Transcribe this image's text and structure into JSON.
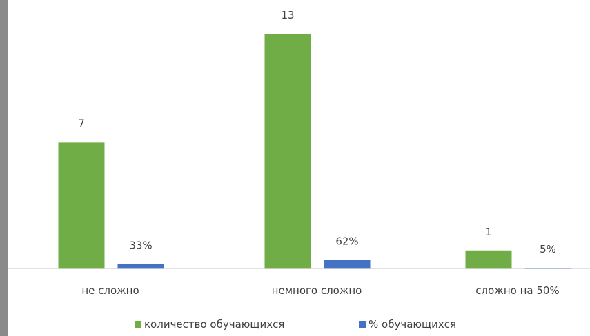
{
  "chart_data": {
    "type": "bar",
    "categories": [
      "не сложно",
      "немного сложно",
      "сложно на 50%"
    ],
    "series": [
      {
        "name": "количество обучающихся",
        "values": [
          7,
          13,
          1
        ],
        "labels": [
          "7",
          "13",
          "1"
        ],
        "color": "#70ad47"
      },
      {
        "name": "% обучающихся",
        "values": [
          0.33,
          0.62,
          0.05
        ],
        "labels": [
          "33%",
          "62%",
          "5%"
        ],
        "color": "#4472c4"
      }
    ],
    "title": "",
    "xlabel": "",
    "ylabel": "",
    "ylim": [
      0,
      13
    ],
    "grid": false,
    "legend": "bottom"
  }
}
